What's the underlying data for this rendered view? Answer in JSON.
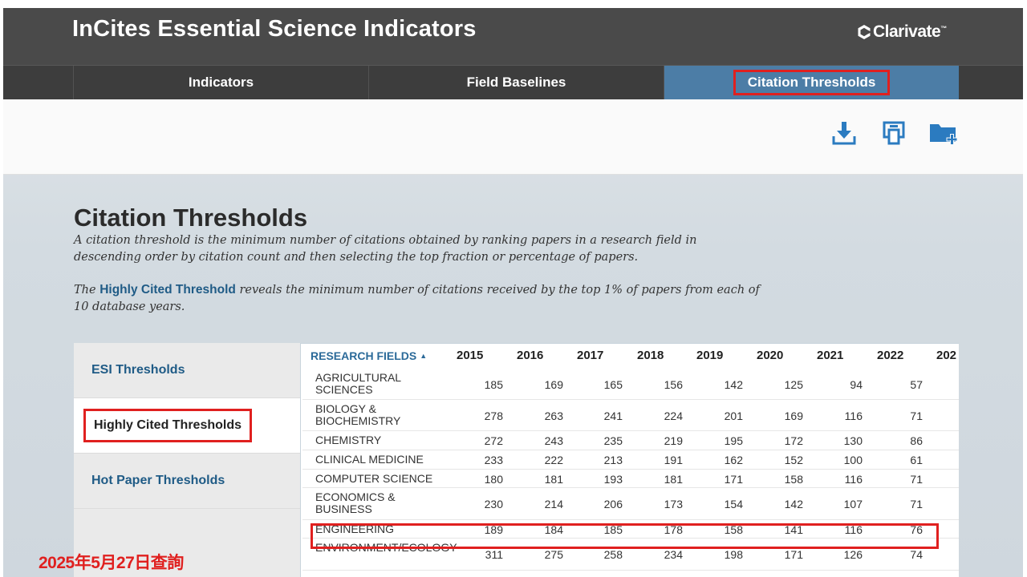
{
  "header": {
    "app_title": "InCites Essential Science Indicators",
    "brand": "Clarivate",
    "brand_tm": "™"
  },
  "nav": {
    "tabs": [
      {
        "label": "Indicators",
        "active": false
      },
      {
        "label": "Field Baselines",
        "active": false
      },
      {
        "label": "Citation Thresholds",
        "active": true
      }
    ]
  },
  "toolbar": {
    "icons": [
      "download-icon",
      "print-icon",
      "add-to-folder-icon"
    ]
  },
  "page": {
    "title": "Citation Thresholds",
    "desc1": "A citation threshold is the minimum number of citations obtained by ranking papers in a research field in descending order by citation count and then selecting the top fraction or percentage of papers.",
    "desc2_pre": "The ",
    "desc2_link": "Highly Cited Threshold",
    "desc2_post": " reveals the minimum number of citations received by the top 1% of papers from each of 10 database years."
  },
  "sidebar": {
    "items": [
      {
        "label": "ESI Thresholds",
        "active": false
      },
      {
        "label": "Highly Cited Thresholds",
        "active": true
      },
      {
        "label": "Hot Paper Thresholds",
        "active": false
      }
    ]
  },
  "table": {
    "field_header": "RESEARCH FIELDS",
    "sort_icon": "sort-asc-icon",
    "years": [
      "2015",
      "2016",
      "2017",
      "2018",
      "2019",
      "2020",
      "2021",
      "2022",
      "202"
    ],
    "rows": [
      {
        "field": "AGRICULTURAL SCIENCES",
        "values": [
          "185",
          "169",
          "165",
          "156",
          "142",
          "125",
          "94",
          "57"
        ]
      },
      {
        "field": "BIOLOGY & BIOCHEMISTRY",
        "values": [
          "278",
          "263",
          "241",
          "224",
          "201",
          "169",
          "116",
          "71"
        ]
      },
      {
        "field": "CHEMISTRY",
        "values": [
          "272",
          "243",
          "235",
          "219",
          "195",
          "172",
          "130",
          "86"
        ]
      },
      {
        "field": "CLINICAL MEDICINE",
        "values": [
          "233",
          "222",
          "213",
          "191",
          "162",
          "152",
          "100",
          "61"
        ]
      },
      {
        "field": "COMPUTER SCIENCE",
        "values": [
          "180",
          "181",
          "193",
          "181",
          "171",
          "158",
          "116",
          "71"
        ]
      },
      {
        "field": "ECONOMICS & BUSINESS",
        "values": [
          "230",
          "214",
          "206",
          "173",
          "154",
          "142",
          "107",
          "71"
        ]
      },
      {
        "field": "ENGINEERING",
        "values": [
          "189",
          "184",
          "185",
          "178",
          "158",
          "141",
          "116",
          "76"
        ]
      },
      {
        "field": "ENVIRONMENT/ECOLOGY",
        "values": [
          "311",
          "275",
          "258",
          "234",
          "198",
          "171",
          "126",
          "74"
        ]
      }
    ]
  },
  "annotation": {
    "date_stamp": "2025年5月27日查詢",
    "highlight_color": "#e0201f"
  }
}
